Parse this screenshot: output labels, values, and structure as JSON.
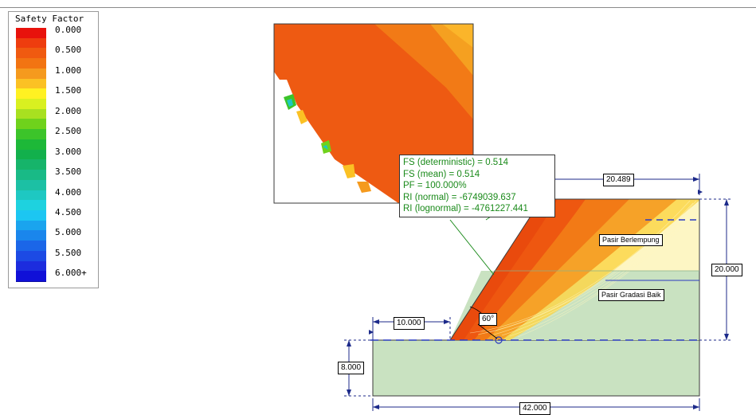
{
  "legend": {
    "title": "Safety Factor",
    "entries": [
      {
        "label": "0.000",
        "color": "#e8120c"
      },
      {
        "label": "",
        "color": "#ee3d0e"
      },
      {
        "label": "0.500",
        "color": "#f05a10"
      },
      {
        "label": "",
        "color": "#f27412"
      },
      {
        "label": "1.000",
        "color": "#f59a1e"
      },
      {
        "label": "",
        "color": "#fbc124"
      },
      {
        "label": "1.500",
        "color": "#fff122"
      },
      {
        "label": "",
        "color": "#d9f020"
      },
      {
        "label": "2.000",
        "color": "#a8e020"
      },
      {
        "label": "",
        "color": "#6fd21c"
      },
      {
        "label": "2.500",
        "color": "#3cc42a"
      },
      {
        "label": "",
        "color": "#1db838"
      },
      {
        "label": "3.000",
        "color": "#12b04c"
      },
      {
        "label": "",
        "color": "#16b46a"
      },
      {
        "label": "3.500",
        "color": "#19ba86"
      },
      {
        "label": "",
        "color": "#1cc0a4"
      },
      {
        "label": "4.000",
        "color": "#1ec8c2"
      },
      {
        "label": "",
        "color": "#1ed2df"
      },
      {
        "label": "4.500",
        "color": "#1cc6f2"
      },
      {
        "label": "",
        "color": "#1aa4ee"
      },
      {
        "label": "5.000",
        "color": "#1a86ec"
      },
      {
        "label": "",
        "color": "#1b66e8"
      },
      {
        "label": "5.500",
        "color": "#1c4ae4"
      },
      {
        "label": "",
        "color": "#1c2cde"
      },
      {
        "label": "6.000+",
        "color": "#1010d8"
      }
    ]
  },
  "results": {
    "fs_deterministic": "FS (deterministic) = 0.514",
    "fs_mean": "FS (mean) = 0.514",
    "pf": "PF = 100.000%",
    "ri_normal": "RI (normal) = -6749039.637",
    "ri_lognormal": "RI (lognormal) = -4761227.441"
  },
  "dimensions": {
    "top_width": "20.489",
    "height": "20.000",
    "crest_offset": "10.000",
    "angle": "60°",
    "foundation_depth": "8.000",
    "total_width": "42.000"
  },
  "materials": {
    "upper": "Pasir Berlempung",
    "lower": "Pasir Gradasi Baik"
  },
  "colors": {
    "upper_material": "#fdf6c4",
    "lower_material": "#c9e2c1",
    "foundation": "#c9e2c1",
    "dimension_line": "#1c2a8a",
    "water_table": "#2a3ac0"
  }
}
